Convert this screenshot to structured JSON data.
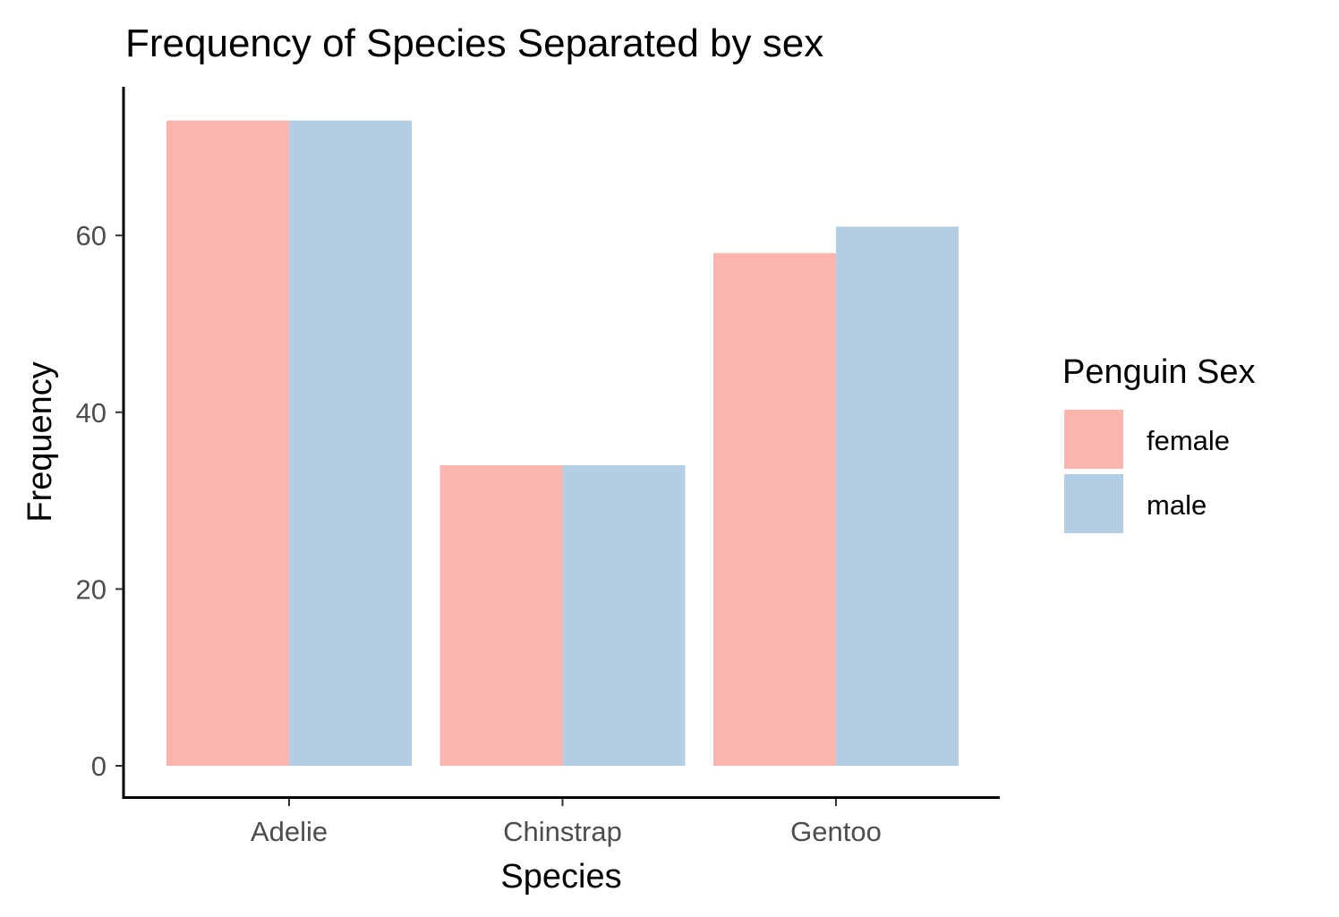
{
  "chart_data": {
    "type": "bar",
    "title": "Frequency of Species Separated by sex",
    "xlabel": "Species",
    "ylabel": "Frequency",
    "categories": [
      "Adelie",
      "Chinstrap",
      "Gentoo"
    ],
    "series": [
      {
        "name": "female",
        "values": [
          73,
          34,
          58
        ],
        "color": "#FBB4AE"
      },
      {
        "name": "male",
        "values": [
          73,
          34,
          61
        ],
        "color": "#B3CDE3"
      }
    ],
    "ylim": [
      0,
      77
    ],
    "yticks": [
      0,
      20,
      40,
      60
    ],
    "grid": false,
    "legend": {
      "title": "Penguin Sex",
      "position": "right"
    }
  }
}
